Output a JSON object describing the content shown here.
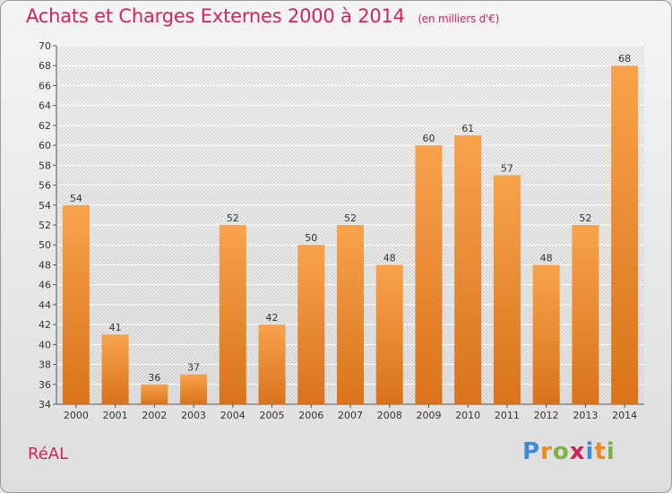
{
  "header": {
    "title": "Achats et Charges Externes 2000 à 2014",
    "subtitle": "(en milliers d'€)"
  },
  "footer": {
    "commune": "RéAL",
    "logo_text": "Proxiti"
  },
  "colors": {
    "title": "#d1245a",
    "bar_top": "#f7a34c",
    "bar_bottom": "#d9731b",
    "logo_letters": [
      "#3a8ed6",
      "#f08a1d",
      "#7cb342",
      "#d1245a",
      "#3a8ed6",
      "#f08a1d",
      "#7cb342"
    ]
  },
  "chart_data": {
    "type": "bar",
    "categories": [
      "2000",
      "2001",
      "2002",
      "2003",
      "2004",
      "2005",
      "2006",
      "2007",
      "2008",
      "2009",
      "2010",
      "2011",
      "2012",
      "2013",
      "2014"
    ],
    "values": [
      54,
      41,
      36,
      37,
      52,
      42,
      50,
      52,
      48,
      60,
      61,
      57,
      48,
      52,
      68
    ],
    "ylim": [
      34,
      70
    ],
    "yticks": [
      34,
      36,
      38,
      40,
      42,
      44,
      46,
      48,
      50,
      52,
      54,
      56,
      58,
      60,
      62,
      64,
      66,
      68,
      70
    ],
    "grid": true,
    "data_labels": true
  }
}
